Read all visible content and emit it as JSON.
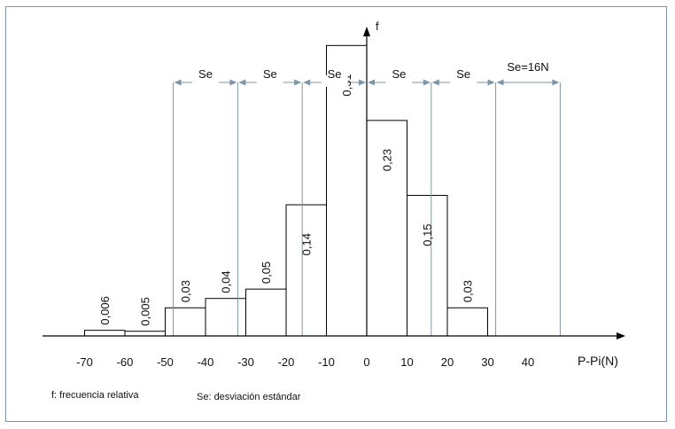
{
  "chart_data": {
    "type": "bar",
    "title": "",
    "ylabel": "f",
    "xlabel": "P-Pi(N)",
    "xlim": [
      -77,
      62
    ],
    "ylim": [
      0,
      0.34
    ],
    "x_ticks": [
      "-70",
      "-60",
      "-50",
      "-40",
      "-30",
      "-20",
      "-10",
      "0",
      "10",
      "20",
      "30",
      "40"
    ],
    "x_tick_values": [
      -70,
      -60,
      -50,
      -40,
      -30,
      -20,
      -10,
      0,
      10,
      20,
      30,
      40
    ],
    "bins": [
      {
        "from": -70,
        "to": -60,
        "value": 0.006,
        "label": "0,006"
      },
      {
        "from": -60,
        "to": -50,
        "value": 0.005,
        "label": "0,005"
      },
      {
        "from": -50,
        "to": -40,
        "value": 0.03,
        "label": "0,03"
      },
      {
        "from": -40,
        "to": -30,
        "value": 0.04,
        "label": "0,04"
      },
      {
        "from": -30,
        "to": -20,
        "value": 0.05,
        "label": "0,05"
      },
      {
        "from": -20,
        "to": -10,
        "value": 0.14,
        "label": "0,14"
      },
      {
        "from": -10,
        "to": 0,
        "value": 0.31,
        "label": "0,31"
      },
      {
        "from": 0,
        "to": 10,
        "value": 0.23,
        "label": "0,23"
      },
      {
        "from": 10,
        "to": 20,
        "value": 0.15,
        "label": "0,15"
      },
      {
        "from": 20,
        "to": 30,
        "value": 0.03,
        "label": "0,03"
      }
    ],
    "se_boundaries": [
      -48,
      -32,
      -16,
      0,
      16,
      32,
      48
    ],
    "se_labels": [
      "Se",
      "Se",
      "Se",
      "Se",
      "Se",
      "Se=16N"
    ],
    "legend_notes": [
      "f: frecuencia relativa",
      "Se: desviación estándar"
    ],
    "colors": {
      "bar_stroke": "#000000",
      "se_line": "#7a96a8",
      "frame": "#7a96a8"
    }
  }
}
